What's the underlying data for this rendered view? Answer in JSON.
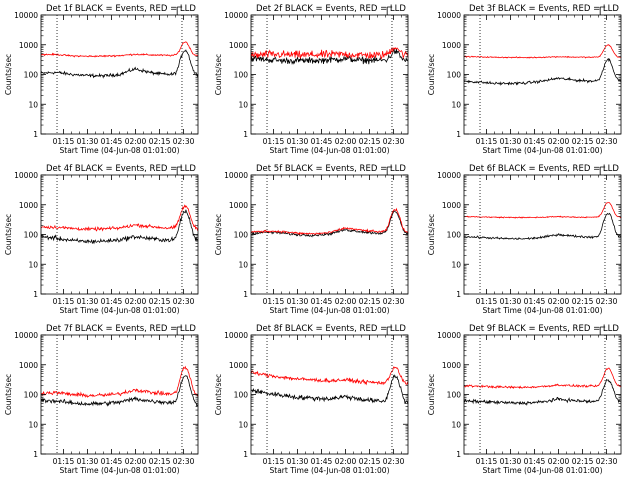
{
  "figure": {
    "colors": {
      "events": "#000000",
      "lld": "#ff0000",
      "axes": "#000000",
      "background": "#ffffff"
    }
  },
  "chart_data": [
    {
      "type": "line",
      "title": "Det 1f BLACK = Events, RED = LLD",
      "xlabel": "Start Time (04-Jun-08 01:01:00)",
      "ylabel": "Counts/sec",
      "x_ticks": [
        "01:15",
        "01:30",
        "01:45",
        "02:00",
        "02:15",
        "02:30"
      ],
      "y_ticks": [
        "1",
        "10",
        "100",
        "1000",
        "10000"
      ],
      "yscale": "log",
      "ylim": [
        1,
        10000
      ],
      "xlim_minutes_after_start": [
        0,
        98
      ],
      "dotted_vlines_minutes": [
        10,
        88
      ],
      "flare_peak_minutes": 90,
      "series": [
        {
          "name": "Events",
          "color": "#000000",
          "baseline": [
            110,
            118,
            100,
            92,
            90,
            100,
            155,
            115,
            100,
            103,
            100
          ],
          "peak": 650,
          "noise": 0.06
        },
        {
          "name": "LLD",
          "color": "#ff0000",
          "baseline": [
            470,
            470,
            420,
            410,
            415,
            430,
            480,
            455,
            440,
            440,
            440
          ],
          "peak": 1250,
          "noise": 0.03
        }
      ]
    },
    {
      "type": "line",
      "title": "Det 2f BLACK = Events, RED = LLD",
      "xlabel": "Start Time (04-Jun-08 01:01:00)",
      "ylabel": "Counts/sec",
      "x_ticks": [
        "01:15",
        "01:30",
        "01:45",
        "02:00",
        "02:15",
        "02:30"
      ],
      "y_ticks": [
        "1",
        "10",
        "100",
        "1000",
        "10000"
      ],
      "yscale": "log",
      "ylim": [
        1,
        10000
      ],
      "xlim_minutes_after_start": [
        0,
        98
      ],
      "dotted_vlines_minutes": [
        10,
        88
      ],
      "flare_peak_minutes": 90,
      "series": [
        {
          "name": "Events",
          "color": "#000000",
          "baseline": [
            350,
            320,
            290,
            295,
            290,
            310,
            340,
            300,
            300,
            305,
            300
          ],
          "peak": 600,
          "noise": 0.12
        },
        {
          "name": "LLD",
          "color": "#ff0000",
          "baseline": [
            430,
            470,
            470,
            450,
            460,
            470,
            480,
            450,
            440,
            470,
            450
          ],
          "peak": 850,
          "noise": 0.15
        }
      ]
    },
    {
      "type": "line",
      "title": "Det 3f BLACK = Events, RED = LLD",
      "xlabel": "Start Time (04-Jun-08 01:01:00)",
      "ylabel": "Counts/sec",
      "x_ticks": [
        "01:15",
        "01:30",
        "01:45",
        "02:00",
        "02:15",
        "02:30"
      ],
      "y_ticks": [
        "1",
        "10",
        "100",
        "1000",
        "10000"
      ],
      "yscale": "log",
      "ylim": [
        1,
        10000
      ],
      "xlim_minutes_after_start": [
        0,
        98
      ],
      "dotted_vlines_minutes": [
        10,
        88
      ],
      "flare_peak_minutes": 90,
      "series": [
        {
          "name": "Events",
          "color": "#000000",
          "baseline": [
            60,
            55,
            50,
            50,
            52,
            60,
            75,
            65,
            60,
            62,
            60
          ],
          "peak": 320,
          "noise": 0.05
        },
        {
          "name": "LLD",
          "color": "#ff0000",
          "baseline": [
            400,
            390,
            380,
            375,
            370,
            380,
            395,
            385,
            380,
            385,
            380
          ],
          "peak": 1000,
          "noise": 0.02
        }
      ]
    },
    {
      "type": "line",
      "title": "Det 4f BLACK = Events, RED = LLD",
      "xlabel": "Start Time (04-Jun-08 01:01:00)",
      "ylabel": "Counts/sec",
      "x_ticks": [
        "01:15",
        "01:30",
        "01:45",
        "02:00",
        "02:15",
        "02:30"
      ],
      "y_ticks": [
        "1",
        "10",
        "100",
        "1000",
        "10000"
      ],
      "yscale": "log",
      "ylim": [
        1,
        10000
      ],
      "xlim_minutes_after_start": [
        0,
        98
      ],
      "dotted_vlines_minutes": [
        10,
        88
      ],
      "flare_peak_minutes": 90,
      "series": [
        {
          "name": "Events",
          "color": "#000000",
          "baseline": [
            85,
            75,
            62,
            58,
            60,
            66,
            85,
            72,
            65,
            68,
            66
          ],
          "peak": 600,
          "noise": 0.08
        },
        {
          "name": "LLD",
          "color": "#ff0000",
          "baseline": [
            180,
            175,
            160,
            150,
            155,
            165,
            210,
            185,
            165,
            170,
            160
          ],
          "peak": 900,
          "noise": 0.06
        }
      ]
    },
    {
      "type": "line",
      "title": "Det 5f BLACK = Events, RED = LLD",
      "xlabel": "Start Time (04-Jun-08 01:01:00)",
      "ylabel": "Counts/sec",
      "x_ticks": [
        "01:15",
        "01:30",
        "01:45",
        "02:00",
        "02:15",
        "02:30"
      ],
      "y_ticks": [
        "1",
        "10",
        "100",
        "1000",
        "10000"
      ],
      "yscale": "log",
      "ylim": [
        1,
        10000
      ],
      "xlim_minutes_after_start": [
        0,
        98
      ],
      "dotted_vlines_minutes": [
        10,
        88
      ],
      "flare_peak_minutes": 90,
      "series": [
        {
          "name": "Events",
          "color": "#000000",
          "baseline": [
            110,
            120,
            112,
            98,
            95,
            105,
            145,
            125,
            112,
            110,
            108
          ],
          "peak": 600,
          "noise": 0.05
        },
        {
          "name": "LLD",
          "color": "#ff0000",
          "baseline": [
            120,
            130,
            125,
            110,
            105,
            115,
            165,
            140,
            125,
            122,
            120
          ],
          "peak": 700,
          "noise": 0.04
        }
      ]
    },
    {
      "type": "line",
      "title": "Det 6f BLACK = Events, RED = LLD",
      "xlabel": "Start Time (04-Jun-08 01:01:00)",
      "ylabel": "Counts/sec",
      "x_ticks": [
        "01:15",
        "01:30",
        "01:45",
        "02:00",
        "02:15",
        "02:30"
      ],
      "y_ticks": [
        "1",
        "10",
        "100",
        "1000",
        "10000"
      ],
      "yscale": "log",
      "ylim": [
        1,
        10000
      ],
      "xlim_minutes_after_start": [
        0,
        98
      ],
      "dotted_vlines_minutes": [
        10,
        88
      ],
      "flare_peak_minutes": 90,
      "series": [
        {
          "name": "Events",
          "color": "#000000",
          "baseline": [
            85,
            80,
            75,
            72,
            72,
            80,
            100,
            88,
            82,
            85,
            82
          ],
          "peak": 520,
          "noise": 0.04
        },
        {
          "name": "LLD",
          "color": "#ff0000",
          "baseline": [
            400,
            390,
            380,
            375,
            370,
            380,
            400,
            385,
            380,
            385,
            380
          ],
          "peak": 1200,
          "noise": 0.02
        }
      ]
    },
    {
      "type": "line",
      "title": "Det 7f BLACK = Events, RED = LLD",
      "xlabel": "Start Time (04-Jun-08 01:01:00)",
      "ylabel": "Counts/sec",
      "x_ticks": [
        "01:15",
        "01:30",
        "01:45",
        "02:00",
        "02:15",
        "02:30"
      ],
      "y_ticks": [
        "1",
        "10",
        "100",
        "1000",
        "10000"
      ],
      "yscale": "log",
      "ylim": [
        1,
        10000
      ],
      "xlim_minutes_after_start": [
        0,
        98
      ],
      "dotted_vlines_minutes": [
        10,
        88
      ],
      "flare_peak_minutes": 90,
      "series": [
        {
          "name": "Events",
          "color": "#000000",
          "baseline": [
            65,
            60,
            52,
            48,
            50,
            55,
            72,
            60,
            55,
            52,
            45
          ],
          "peak": 420,
          "noise": 0.08
        },
        {
          "name": "LLD",
          "color": "#ff0000",
          "baseline": [
            110,
            115,
            100,
            92,
            95,
            105,
            145,
            118,
            105,
            100,
            95
          ],
          "peak": 800,
          "noise": 0.07
        }
      ]
    },
    {
      "type": "line",
      "title": "Det 8f BLACK = Events, RED = LLD",
      "xlabel": "Start Time (04-Jun-08 01:01:00)",
      "ylabel": "Counts/sec",
      "x_ticks": [
        "01:15",
        "01:30",
        "01:45",
        "02:00",
        "02:15",
        "02:30"
      ],
      "y_ticks": [
        "1",
        "10",
        "100",
        "1000",
        "10000"
      ],
      "yscale": "log",
      "ylim": [
        1,
        10000
      ],
      "xlim_minutes_after_start": [
        0,
        98
      ],
      "dotted_vlines_minutes": [
        10,
        88
      ],
      "flare_peak_minutes": 90,
      "series": [
        {
          "name": "Events",
          "color": "#000000",
          "baseline": [
            140,
            110,
            95,
            80,
            75,
            72,
            85,
            70,
            60,
            55,
            52
          ],
          "peak": 420,
          "noise": 0.09
        },
        {
          "name": "LLD",
          "color": "#ff0000",
          "baseline": [
            550,
            450,
            380,
            330,
            310,
            290,
            310,
            270,
            250,
            240,
            230
          ],
          "peak": 850,
          "noise": 0.07
        }
      ]
    },
    {
      "type": "line",
      "title": "Det 9f BLACK = Events, RED = LLD",
      "xlabel": "Start Time (04-Jun-08 01:01:00)",
      "ylabel": "Counts/sec",
      "x_ticks": [
        "01:15",
        "01:30",
        "01:45",
        "02:00",
        "02:15",
        "02:30"
      ],
      "y_ticks": [
        "1",
        "10",
        "100",
        "1000",
        "10000"
      ],
      "yscale": "log",
      "ylim": [
        1,
        10000
      ],
      "xlim_minutes_after_start": [
        0,
        98
      ],
      "dotted_vlines_minutes": [
        10,
        88
      ],
      "flare_peak_minutes": 90,
      "series": [
        {
          "name": "Events",
          "color": "#000000",
          "baseline": [
            60,
            58,
            55,
            52,
            52,
            56,
            70,
            62,
            58,
            60,
            58
          ],
          "peak": 320,
          "noise": 0.06
        },
        {
          "name": "LLD",
          "color": "#ff0000",
          "baseline": [
            195,
            190,
            180,
            175,
            175,
            185,
            210,
            195,
            190,
            192,
            190
          ],
          "peak": 750,
          "noise": 0.04
        }
      ]
    }
  ]
}
